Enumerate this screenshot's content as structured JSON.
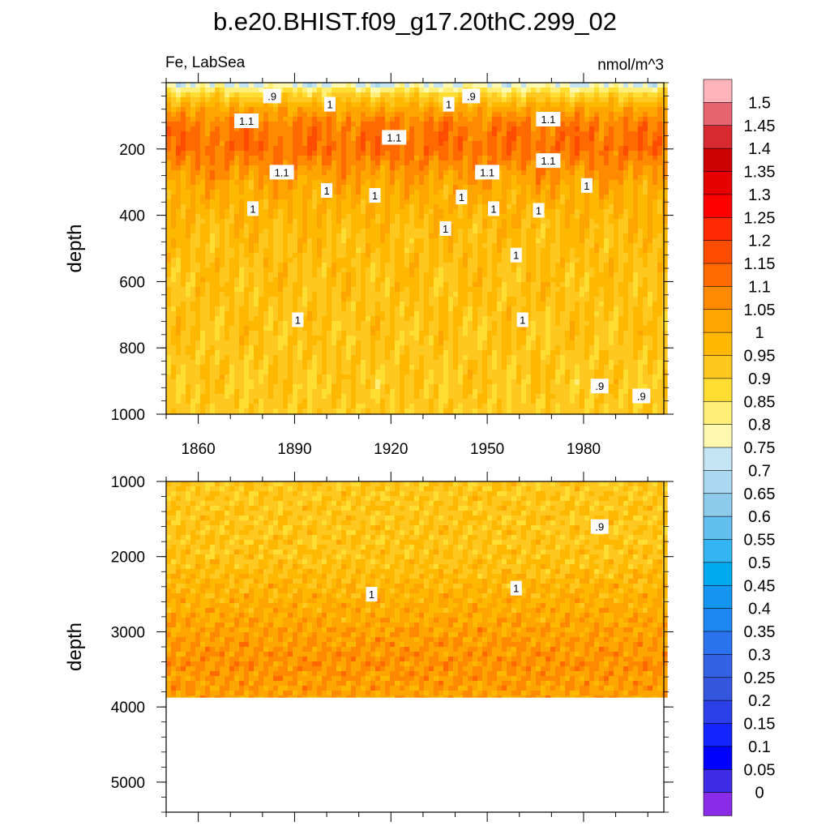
{
  "chart_data": {
    "type": "heatmap",
    "title": "b.e20.BHIST.f09_g17.20thC.299_02",
    "left_string": "Fe, LabSea",
    "right_string": "nmol/m^3",
    "x_ticks": [
      1860,
      1890,
      1920,
      1950,
      1980
    ],
    "xlim": [
      1850,
      2005
    ],
    "panels": [
      {
        "name": "upper",
        "ylabel": "depth",
        "ylim": [
          0,
          1000
        ],
        "y_ticks": [
          200,
          400,
          600,
          800,
          1000
        ],
        "depth_profile": [
          {
            "depth": 0,
            "value": 0.72
          },
          {
            "depth": 30,
            "value": 0.88
          },
          {
            "depth": 80,
            "value": 1.02
          },
          {
            "depth": 130,
            "value": 1.1
          },
          {
            "depth": 200,
            "value": 1.12
          },
          {
            "depth": 260,
            "value": 1.06
          },
          {
            "depth": 320,
            "value": 1.01
          },
          {
            "depth": 450,
            "value": 0.96
          },
          {
            "depth": 1000,
            "value": 0.92
          }
        ],
        "contour_labels": [
          {
            "text": ".9",
            "x": 1883,
            "y": 40
          },
          {
            "text": ".9",
            "x": 1945,
            "y": 40
          },
          {
            "text": "1",
            "x": 1901,
            "y": 65
          },
          {
            "text": "1",
            "x": 1938,
            "y": 65
          },
          {
            "text": "1.1",
            "x": 1875,
            "y": 115
          },
          {
            "text": "1.1",
            "x": 1969,
            "y": 110
          },
          {
            "text": "1.1",
            "x": 1921,
            "y": 165
          },
          {
            "text": "1.1",
            "x": 1969,
            "y": 235
          },
          {
            "text": "1.1",
            "x": 1886,
            "y": 270
          },
          {
            "text": "1.1",
            "x": 1950,
            "y": 270
          },
          {
            "text": "1",
            "x": 1981,
            "y": 310
          },
          {
            "text": "1",
            "x": 1900,
            "y": 325
          },
          {
            "text": "1",
            "x": 1915,
            "y": 340
          },
          {
            "text": "1",
            "x": 1942,
            "y": 345
          },
          {
            "text": "1",
            "x": 1877,
            "y": 380
          },
          {
            "text": "1",
            "x": 1952,
            "y": 380
          },
          {
            "text": "1",
            "x": 1966,
            "y": 385
          },
          {
            "text": "1",
            "x": 1937,
            "y": 440
          },
          {
            "text": "1",
            "x": 1959,
            "y": 520
          },
          {
            "text": "1",
            "x": 1891,
            "y": 715
          },
          {
            "text": "1",
            "x": 1961,
            "y": 715
          },
          {
            "text": ".9",
            "x": 1985,
            "y": 915
          },
          {
            "text": ".9",
            "x": 1998,
            "y": 945
          }
        ]
      },
      {
        "name": "lower",
        "ylabel": "depth",
        "ylim": [
          1000,
          5400
        ],
        "y_ticks": [
          1000,
          2000,
          3000,
          4000,
          5000
        ],
        "data_bottom_depth": 3870,
        "depth_profile": [
          {
            "depth": 1000,
            "value": 0.93
          },
          {
            "depth": 2000,
            "value": 0.94
          },
          {
            "depth": 2500,
            "value": 0.99
          },
          {
            "depth": 3000,
            "value": 1.03
          },
          {
            "depth": 3400,
            "value": 1.06
          },
          {
            "depth": 3870,
            "value": 1.03
          }
        ],
        "contour_labels": [
          {
            "text": ".9",
            "x": 1985,
            "y": 1600
          },
          {
            "text": "1",
            "x": 1914,
            "y": 2500
          },
          {
            "text": "1",
            "x": 1959,
            "y": 2420
          }
        ]
      }
    ],
    "colorbar": {
      "levels": [
        "1.5",
        "1.45",
        "1.4",
        "1.35",
        "1.3",
        "1.25",
        "1.2",
        "1.15",
        "1.1",
        "1.05",
        "1",
        "0.95",
        "0.9",
        "0.85",
        "0.8",
        "0.75",
        "0.7",
        "0.65",
        "0.6",
        "0.55",
        "0.5",
        "0.45",
        "0.4",
        "0.35",
        "0.3",
        "0.25",
        "0.2",
        "0.15",
        "0.1",
        "0.05",
        "0"
      ],
      "colors": [
        "#ffb4bb",
        "#e66570",
        "#d82830",
        "#cc0000",
        "#e60000",
        "#ff0000",
        "#ff2a00",
        "#ff4d00",
        "#ff6a00",
        "#ff8a00",
        "#ffa500",
        "#ffb800",
        "#ffc820",
        "#ffdd33",
        "#ffee77",
        "#fff8b0",
        "#c4e4f4",
        "#aad8f0",
        "#8ccbea",
        "#62bff0",
        "#34b4f0",
        "#00aaee",
        "#1496f0",
        "#1e86f0",
        "#2a72ee",
        "#3362e6",
        "#3556de",
        "#2b40e8",
        "#1426ff",
        "#0000ff",
        "#3e2ce6",
        "#8a2be8"
      ]
    }
  }
}
